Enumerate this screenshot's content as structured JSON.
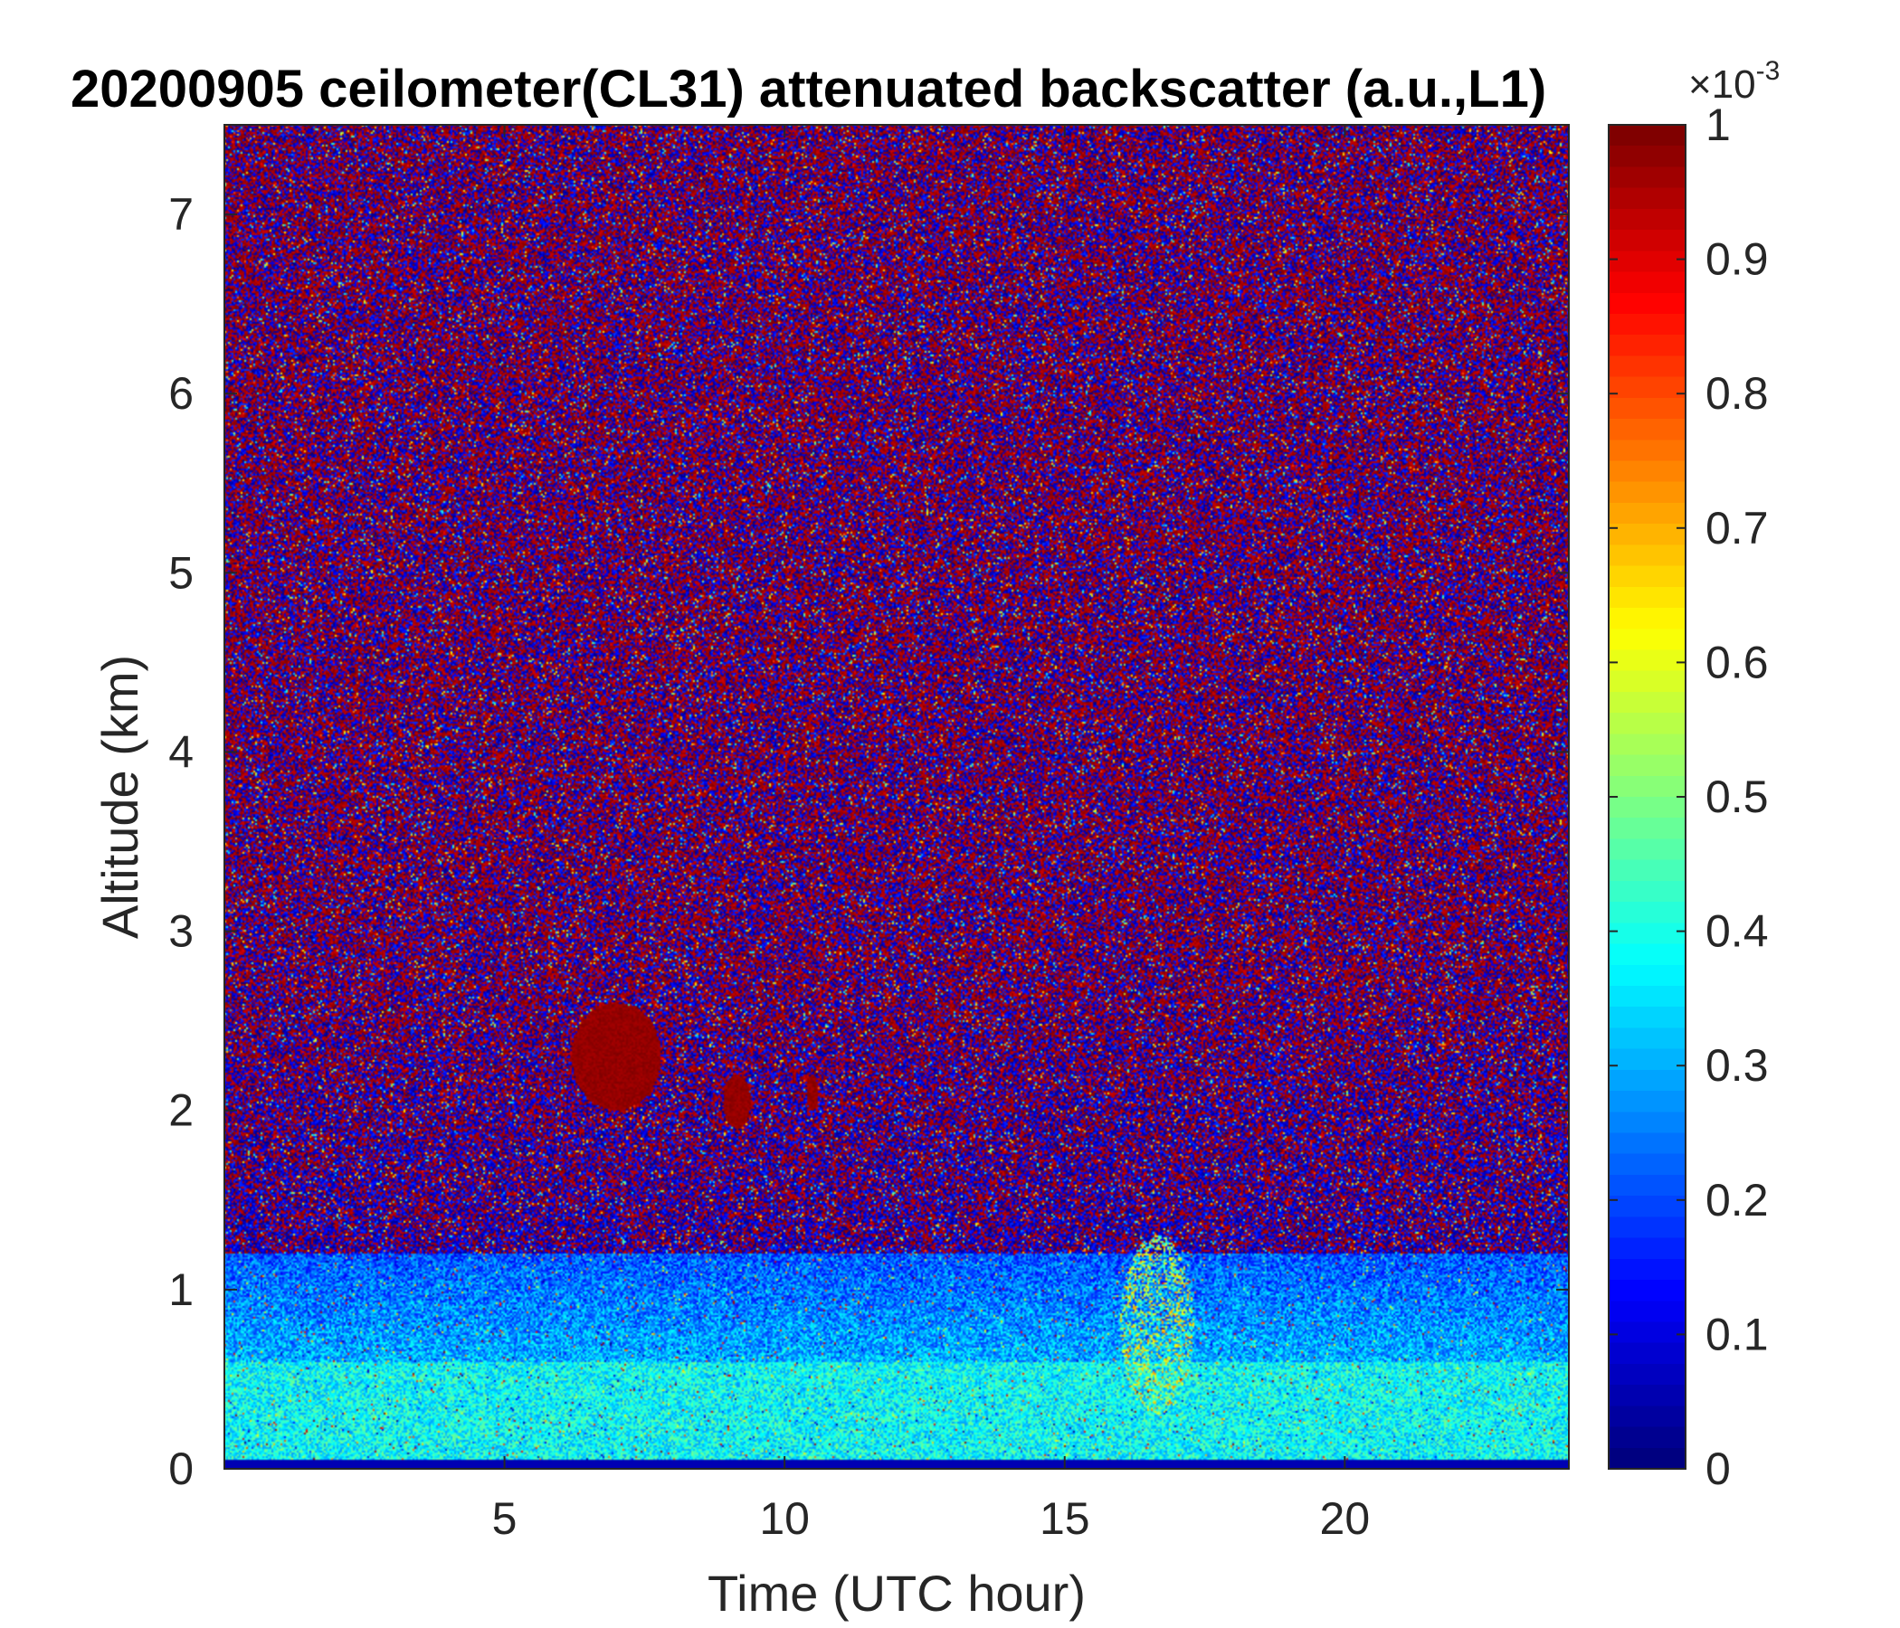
{
  "chart_data": {
    "type": "heatmap",
    "title": "20200905 ceilometer(CL31) attenuated backscatter (a.u.,L1)",
    "xlabel": "Time (UTC hour)",
    "ylabel": "Altitude (km)",
    "xlim": [
      0,
      24
    ],
    "ylim": [
      0,
      7.5
    ],
    "xticks": [
      5,
      10,
      15,
      20
    ],
    "yticks": [
      0,
      1,
      2,
      3,
      4,
      5,
      6,
      7
    ],
    "colorbar": {
      "colormap": "jet",
      "clim": [
        0,
        0.001
      ],
      "ticks": [
        0,
        0.1,
        0.2,
        0.3,
        0.4,
        0.5,
        0.6,
        0.7,
        0.8,
        0.9,
        1
      ],
      "tick_labels": [
        "0",
        "0.1",
        "0.2",
        "0.3",
        "0.4",
        "0.5",
        "0.6",
        "0.7",
        "0.8",
        "0.9",
        "1"
      ],
      "exponent_base": "×10",
      "exponent_power": "-3"
    },
    "features": [
      {
        "altitude_km": [
          0,
          0.6
        ],
        "time_h": [
          0,
          24
        ],
        "mean_value_e3": 0.38
      },
      {
        "altitude_km": [
          0.6,
          1.2
        ],
        "time_h": [
          0,
          24
        ],
        "mean_value_e3": 0.3
      },
      {
        "altitude_km": [
          2.0,
          2.6
        ],
        "time_h": [
          6.2,
          7.8
        ],
        "mean_value_e3": 1.0
      },
      {
        "altitude_km": [
          1.9,
          2.2
        ],
        "time_h": [
          8.9,
          9.4
        ],
        "mean_value_e3": 1.0
      },
      {
        "altitude_km": [
          2.0,
          2.2
        ],
        "time_h": [
          10.4,
          10.6
        ],
        "mean_value_e3": 1.0
      },
      {
        "altitude_km": [
          0.3,
          1.3
        ],
        "time_h": [
          16,
          17.3
        ],
        "mean_value_e3": 0.5
      }
    ],
    "grid": false,
    "legend": "colorbar-right"
  }
}
